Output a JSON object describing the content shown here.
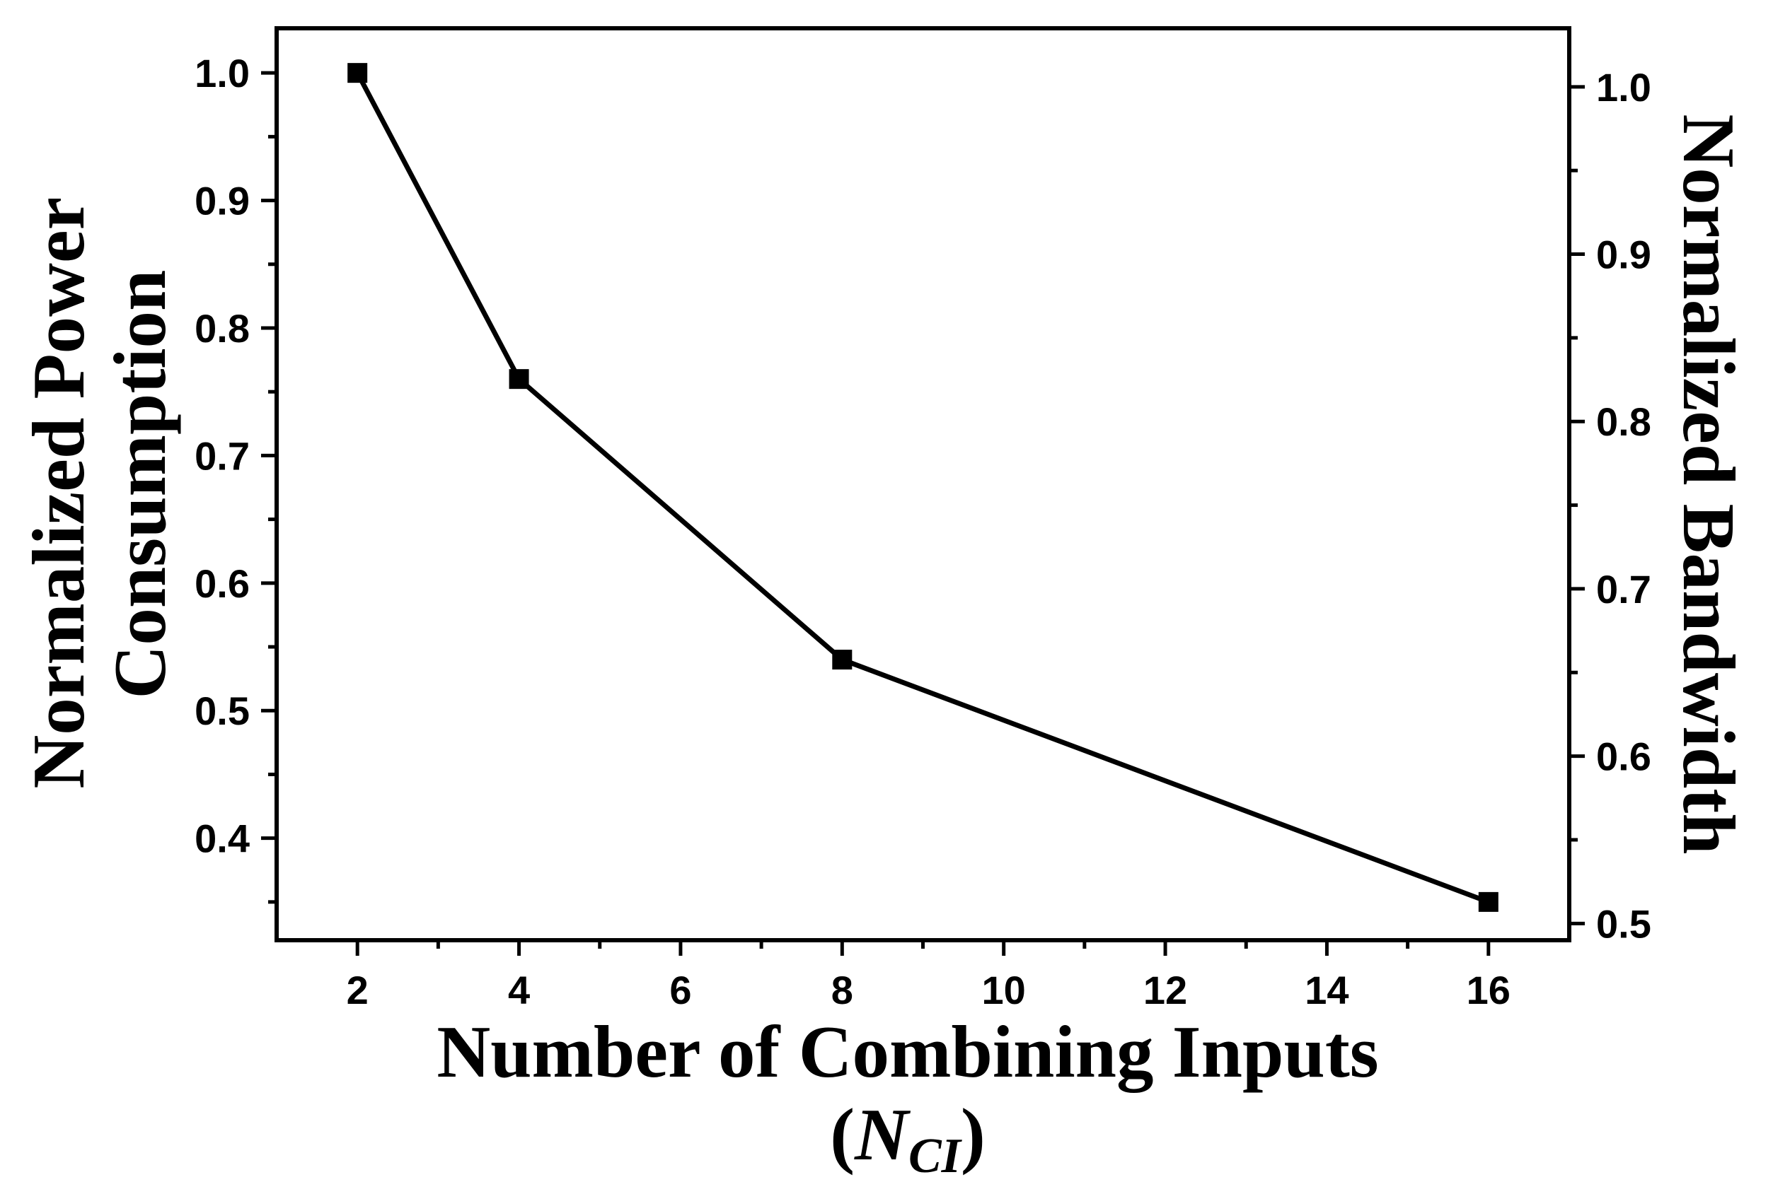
{
  "chart_data": {
    "type": "line",
    "xlabel": "Number of Combining Inputs",
    "xlabel_sub": {
      "open": "(",
      "var": "N",
      "subscript": "CI",
      "close": ")"
    },
    "ylabel_left": [
      "Normalized Power",
      "Consumption"
    ],
    "ylabel_right": "Normalized Bandwidth",
    "xlim": [
      1,
      17
    ],
    "ylim_left": [
      0.32,
      1.035
    ],
    "ylim_right": [
      0.49,
      1.035
    ],
    "x_ticks": [
      "2",
      "4",
      "6",
      "8",
      "10",
      "12",
      "14",
      "16"
    ],
    "y_left_ticks": [
      "0.4",
      "0.5",
      "0.6",
      "0.7",
      "0.8",
      "0.9",
      "1.0"
    ],
    "y_right_ticks": [
      "0.5",
      "0.6",
      "0.7",
      "0.8",
      "0.9",
      "1.0"
    ],
    "grid": false,
    "series": [
      {
        "axis": "left",
        "marker": "square",
        "color": "#000000",
        "x": [
          2,
          4,
          8,
          16
        ],
        "y": [
          1.0,
          0.76,
          0.54,
          0.35
        ]
      }
    ]
  }
}
